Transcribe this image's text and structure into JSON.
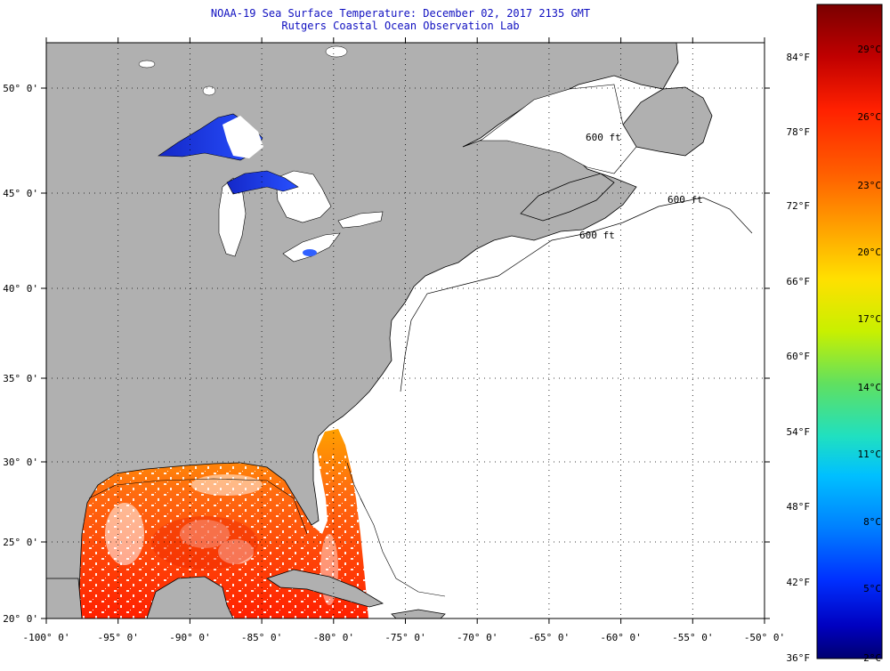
{
  "title": "NOAA-19 Sea Surface Temperature:  December 02, 2017 2135 GMT",
  "subtitle": "Rutgers Coastal Ocean Observation Lab",
  "axes": {
    "lon_labels": [
      "-100° 0'",
      "-95° 0'",
      "-90° 0'",
      "-85° 0'",
      "-80° 0'",
      "-75° 0'",
      "-70° 0'",
      "-65° 0'",
      "-60° 0'",
      "-55° 0'",
      "-50° 0'"
    ],
    "lat_labels": [
      "50° 0'",
      "45° 0'",
      "40° 0'",
      "35° 0'",
      "30° 0'",
      "25° 0'",
      "20° 0'"
    ],
    "lon_range": [
      -100,
      -50
    ],
    "lat_range": [
      20,
      52
    ]
  },
  "colorbar": {
    "fahrenheit_labels": [
      "84°F",
      "78°F",
      "72°F",
      "66°F",
      "60°F",
      "54°F",
      "48°F",
      "42°F",
      "36°F"
    ],
    "celsius_labels": [
      "29°C",
      "26°C",
      "23°C",
      "20°C",
      "17°C",
      "14°C",
      "11°C",
      "8°C",
      "5°C",
      "2°C"
    ],
    "colors": [
      "#7a0000",
      "#c00000",
      "#ff2000",
      "#ff6000",
      "#ffa000",
      "#ffe000",
      "#c8f000",
      "#60e060",
      "#20e0c0",
      "#00c0ff",
      "#0080ff",
      "#0030ff",
      "#0000c0",
      "#000070"
    ]
  },
  "contours": {
    "depth_label": "600 ft"
  },
  "legend_colors": {
    "land": "#b0b0b0",
    "no_data": "#ffffff",
    "coast": "#000000"
  }
}
